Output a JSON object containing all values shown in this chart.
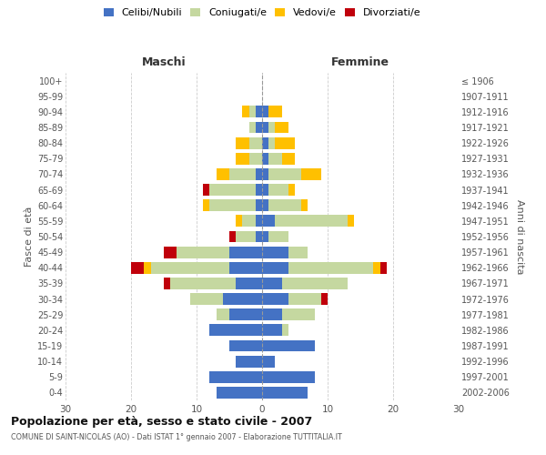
{
  "age_groups": [
    "0-4",
    "5-9",
    "10-14",
    "15-19",
    "20-24",
    "25-29",
    "30-34",
    "35-39",
    "40-44",
    "45-49",
    "50-54",
    "55-59",
    "60-64",
    "65-69",
    "70-74",
    "75-79",
    "80-84",
    "85-89",
    "90-94",
    "95-99",
    "100+"
  ],
  "birth_years": [
    "2002-2006",
    "1997-2001",
    "1992-1996",
    "1987-1991",
    "1982-1986",
    "1977-1981",
    "1972-1976",
    "1967-1971",
    "1962-1966",
    "1957-1961",
    "1952-1956",
    "1947-1951",
    "1942-1946",
    "1937-1941",
    "1932-1936",
    "1927-1931",
    "1922-1926",
    "1917-1921",
    "1912-1916",
    "1907-1911",
    "≤ 1906"
  ],
  "male_celibi": [
    7,
    8,
    4,
    5,
    8,
    5,
    6,
    4,
    5,
    5,
    1,
    1,
    1,
    1,
    1,
    0,
    0,
    1,
    1,
    0,
    0
  ],
  "male_coniugati": [
    0,
    0,
    0,
    0,
    0,
    2,
    5,
    10,
    12,
    8,
    3,
    2,
    7,
    7,
    4,
    2,
    2,
    1,
    1,
    0,
    0
  ],
  "male_vedovi": [
    0,
    0,
    0,
    0,
    0,
    0,
    0,
    0,
    1,
    0,
    0,
    1,
    1,
    0,
    2,
    2,
    2,
    0,
    1,
    0,
    0
  ],
  "male_divorziati": [
    0,
    0,
    0,
    0,
    0,
    0,
    0,
    1,
    2,
    2,
    1,
    0,
    0,
    1,
    0,
    0,
    0,
    0,
    0,
    0,
    0
  ],
  "female_celibi": [
    7,
    8,
    2,
    8,
    3,
    3,
    4,
    3,
    4,
    4,
    1,
    2,
    1,
    1,
    1,
    1,
    1,
    1,
    1,
    0,
    0
  ],
  "female_coniugati": [
    0,
    0,
    0,
    0,
    1,
    5,
    5,
    10,
    13,
    3,
    3,
    11,
    5,
    3,
    5,
    2,
    1,
    1,
    0,
    0,
    0
  ],
  "female_vedovi": [
    0,
    0,
    0,
    0,
    0,
    0,
    0,
    0,
    1,
    0,
    0,
    1,
    1,
    1,
    3,
    2,
    3,
    2,
    2,
    0,
    0
  ],
  "female_divorziati": [
    0,
    0,
    0,
    0,
    0,
    0,
    1,
    0,
    1,
    0,
    0,
    0,
    0,
    0,
    0,
    0,
    0,
    0,
    0,
    0,
    0
  ],
  "color_celibi": "#4472c4",
  "color_coniugati": "#c5d8a0",
  "color_vedovi": "#ffc000",
  "color_divorziati": "#c0000b",
  "title": "Popolazione per età, sesso e stato civile - 2007",
  "subtitle": "COMUNE DI SAINT-NICOLAS (AO) - Dati ISTAT 1° gennaio 2007 - Elaborazione TUTTITALIA.IT",
  "xlabel_left": "Maschi",
  "xlabel_right": "Femmine",
  "ylabel_left": "Fasce di età",
  "ylabel_right": "Anni di nascita",
  "xlim": 30,
  "bg_color": "#ffffff",
  "grid_color": "#cccccc"
}
